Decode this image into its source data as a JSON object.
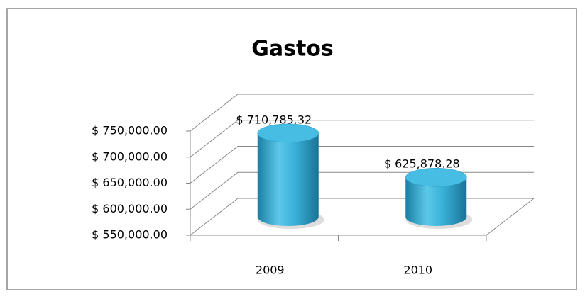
{
  "chart_data": {
    "type": "bar",
    "title": "Gastos",
    "categories": [
      "2009",
      "2010"
    ],
    "values": [
      710785.32,
      625878.28
    ],
    "value_labels": [
      "$ 710,785.32",
      "$ 625,878.28"
    ],
    "color": "#31a9cf",
    "ylim": [
      550000,
      750000
    ],
    "yticks": [
      {
        "value": 550000,
        "label": "$ 550,000.00"
      },
      {
        "value": 600000,
        "label": "$ 600,000.00"
      },
      {
        "value": 650000,
        "label": "$ 650,000.00"
      },
      {
        "value": 700000,
        "label": "$ 700,000.00"
      },
      {
        "value": 750000,
        "label": "$ 750,000.00"
      }
    ],
    "grid": true
  }
}
